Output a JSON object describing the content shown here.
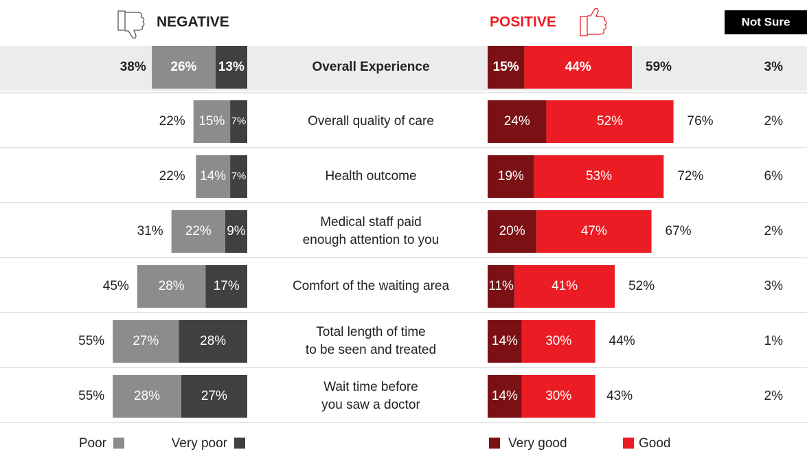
{
  "chart_data": {
    "type": "diverging_bar",
    "headers": {
      "negative": "NEGATIVE",
      "positive": "POSITIVE",
      "not_sure": "Not Sure"
    },
    "categories": [
      [
        "Overall Experience"
      ],
      [
        "Overall quality of care"
      ],
      [
        "Health outcome"
      ],
      [
        "Medical staff paid",
        "enough attention to you"
      ],
      [
        "Comfort of the waiting area"
      ],
      [
        "Total length of time",
        "to be seen and treated"
      ],
      [
        "Wait time before",
        "you saw a doctor"
      ]
    ],
    "series": [
      {
        "name": "Poor",
        "side": "negative",
        "color": "#8c8c8c",
        "values": [
          26,
          15,
          14,
          22,
          28,
          27,
          28
        ],
        "value_labels": [
          "26%",
          "15%",
          "14%",
          "22%",
          "28%",
          "27%",
          "28%"
        ]
      },
      {
        "name": "Very poor",
        "side": "negative",
        "color": "#404040",
        "values": [
          13,
          7,
          7,
          9,
          17,
          28,
          27
        ],
        "value_labels": [
          "13%",
          "7%",
          "7%",
          "9%",
          "17%",
          "28%",
          "27%"
        ]
      },
      {
        "name": "Very good",
        "side": "positive",
        "color": "#7b1114",
        "values": [
          15,
          24,
          19,
          20,
          11,
          14,
          14
        ],
        "value_labels": [
          "15%",
          "24%",
          "19%",
          "20%",
          "11%",
          "14%",
          "14%"
        ]
      },
      {
        "name": "Good",
        "side": "positive",
        "color": "#ec1c24",
        "values": [
          44,
          52,
          53,
          47,
          41,
          30,
          30
        ],
        "value_labels": [
          "44%",
          "52%",
          "53%",
          "47%",
          "41%",
          "30%",
          "30%"
        ]
      }
    ],
    "negative_totals": {
      "values": [
        38,
        22,
        22,
        31,
        45,
        55,
        55
      ],
      "value_labels": [
        "38%",
        "22%",
        "22%",
        "31%",
        "45%",
        "55%",
        "55%"
      ]
    },
    "positive_totals": {
      "values": [
        59,
        76,
        72,
        67,
        52,
        44,
        43
      ],
      "value_labels": [
        "59%",
        "76%",
        "72%",
        "67%",
        "52%",
        "44%",
        "43%"
      ]
    },
    "not_sure": {
      "values": [
        3,
        2,
        6,
        2,
        3,
        1,
        2
      ],
      "value_labels": [
        "3%",
        "2%",
        "6%",
        "2%",
        "3%",
        "1%",
        "2%"
      ]
    }
  }
}
